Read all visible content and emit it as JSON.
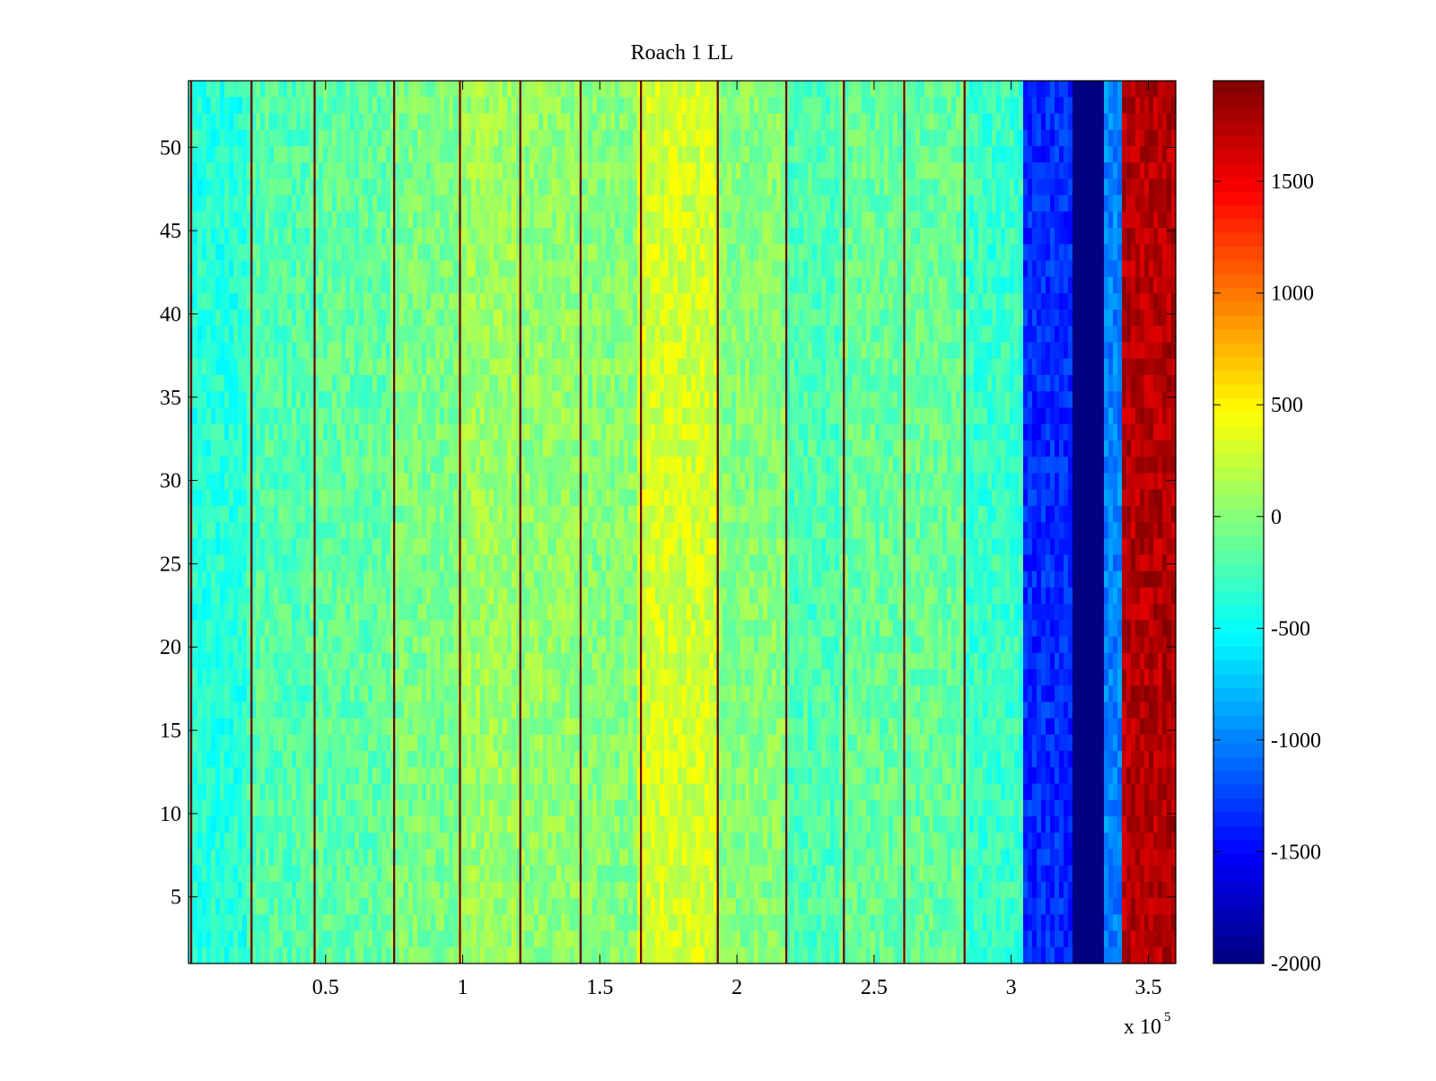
{
  "chart_data": {
    "type": "heatmap",
    "title": "Roach 1 LL",
    "xlabel": "",
    "ylabel": "",
    "x_range": [
      1,
      360000
    ],
    "y_range": [
      1,
      54
    ],
    "x_exponent_label": "x 10",
    "x_exponent_power": "5",
    "x_ticks": [
      {
        "value": 50000,
        "label": "0.5"
      },
      {
        "value": 100000,
        "label": "1"
      },
      {
        "value": 150000,
        "label": "1.5"
      },
      {
        "value": 200000,
        "label": "2"
      },
      {
        "value": 250000,
        "label": "2.5"
      },
      {
        "value": 300000,
        "label": "3"
      },
      {
        "value": 350000,
        "label": "3.5"
      }
    ],
    "y_ticks": [
      {
        "value": 5,
        "label": "5"
      },
      {
        "value": 10,
        "label": "10"
      },
      {
        "value": 15,
        "label": "15"
      },
      {
        "value": 20,
        "label": "20"
      },
      {
        "value": 25,
        "label": "25"
      },
      {
        "value": 30,
        "label": "30"
      },
      {
        "value": 35,
        "label": "35"
      },
      {
        "value": 40,
        "label": "40"
      },
      {
        "value": 45,
        "label": "45"
      },
      {
        "value": 50,
        "label": "50"
      }
    ],
    "colorbar": {
      "colormap": "jet",
      "range": [
        -2000,
        1950
      ],
      "ticks": [
        {
          "value": -2000,
          "label": "-2000"
        },
        {
          "value": -1500,
          "label": "-1500"
        },
        {
          "value": -1000,
          "label": "-1000"
        },
        {
          "value": -500,
          "label": "-500"
        },
        {
          "value": 0,
          "label": "0"
        },
        {
          "value": 500,
          "label": "500"
        },
        {
          "value": 1000,
          "label": "1000"
        },
        {
          "value": 1500,
          "label": "1500"
        }
      ]
    },
    "column_profile": [
      {
        "x_start": 1,
        "x_end": 22000,
        "value": -380
      },
      {
        "x_start": 22000,
        "x_end": 45000,
        "value": -200
      },
      {
        "x_start": 45000,
        "x_end": 74000,
        "value": -150
      },
      {
        "x_start": 74000,
        "x_end": 98000,
        "value": -50
      },
      {
        "x_start": 98000,
        "x_end": 120000,
        "value": 80
      },
      {
        "x_start": 120000,
        "x_end": 142000,
        "value": 40
      },
      {
        "x_start": 142000,
        "x_end": 164000,
        "value": 0
      },
      {
        "x_start": 164000,
        "x_end": 193000,
        "value": 300
      },
      {
        "x_start": 193000,
        "x_end": 217000,
        "value": 0
      },
      {
        "x_start": 217000,
        "x_end": 238000,
        "value": -220
      },
      {
        "x_start": 238000,
        "x_end": 260000,
        "value": -120
      },
      {
        "x_start": 260000,
        "x_end": 283000,
        "value": -120
      },
      {
        "x_start": 283000,
        "x_end": 305000,
        "value": -300
      },
      {
        "x_start": 305000,
        "x_end": 322000,
        "value": -1350
      },
      {
        "x_start": 322000,
        "x_end": 334000,
        "value": -2000
      },
      {
        "x_start": 334000,
        "x_end": 341000,
        "value": -1000
      },
      {
        "x_start": 341000,
        "x_end": 360000,
        "value": 1750
      }
    ],
    "vertical_lines_x": [
      1000,
      23000,
      46000,
      75000,
      99000,
      121000,
      143000,
      165000,
      193000,
      218000,
      239000,
      261000,
      283000
    ]
  }
}
